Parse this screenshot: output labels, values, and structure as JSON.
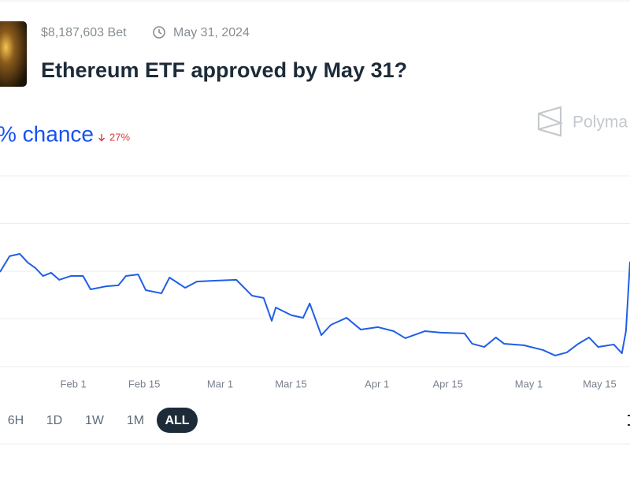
{
  "header": {
    "bet": "$8,187,603 Bet",
    "date": "May 31, 2024",
    "title": "Ethereum ETF approved by May 31?"
  },
  "chance": {
    "label": "% chance",
    "change": "27%"
  },
  "logo": "Polyma",
  "chart_data": {
    "type": "line",
    "x": [
      16.5,
      18.4,
      20.4,
      22,
      23.5,
      25,
      26.6,
      28.2,
      30.5,
      32.9,
      34.4,
      37.5,
      39.9,
      41.4,
      43.8,
      45.3,
      48.4,
      50,
      53.1,
      55.4,
      58.5,
      63.2,
      66.3,
      68.6,
      70.2,
      71,
      74.1,
      76.4,
      77.7,
      80,
      81.9,
      85,
      87.8,
      91.2,
      94.3,
      96.6,
      100.5,
      103.6,
      108.3,
      109.8,
      112.2,
      114.5,
      116.1,
      120,
      123.8,
      126.2,
      128.5,
      130.8,
      132.9,
      134.7,
      137.8,
      139.4,
      140.2,
      141
    ],
    "series": [
      {
        "color": "#1f5fe6",
        "values": [
          49.6,
          57.9,
          59.1,
          54.5,
          51.7,
          47.5,
          49.2,
          45.5,
          47.5,
          47.5,
          40.5,
          42.1,
          42.6,
          47.5,
          48.3,
          40.1,
          38.4,
          46.7,
          41.3,
          44.6,
          45,
          45.5,
          37.2,
          36,
          24,
          31,
          26.9,
          25.6,
          33.1,
          16.5,
          21.9,
          25.6,
          19.4,
          20.7,
          18.6,
          14.9,
          18.6,
          17.8,
          17.4,
          12,
          10.3,
          15.3,
          12,
          11.2,
          8.7,
          5.8,
          7.4,
          12,
          15.3,
          10.3,
          11.6,
          7,
          18.6,
          55
        ]
      }
    ],
    "xlim": [
      16.5,
      141
    ],
    "xticks": [
      {
        "value": 31,
        "label": "Feb 1"
      },
      {
        "value": 45,
        "label": "Feb 15"
      },
      {
        "value": 60,
        "label": "Mar 1"
      },
      {
        "value": 74,
        "label": "Mar 15"
      },
      {
        "value": 91,
        "label": "Apr 1"
      },
      {
        "value": 105,
        "label": "Apr 15"
      },
      {
        "value": 121,
        "label": "May 1"
      },
      {
        "value": 135,
        "label": "May 15"
      }
    ],
    "ylim": [
      0,
      100
    ],
    "yticks": [
      0,
      25,
      50,
      75,
      100
    ],
    "grid": true
  },
  "range_buttons": [
    "6H",
    "1D",
    "1W",
    "1M",
    "ALL"
  ],
  "selected_range": 4
}
